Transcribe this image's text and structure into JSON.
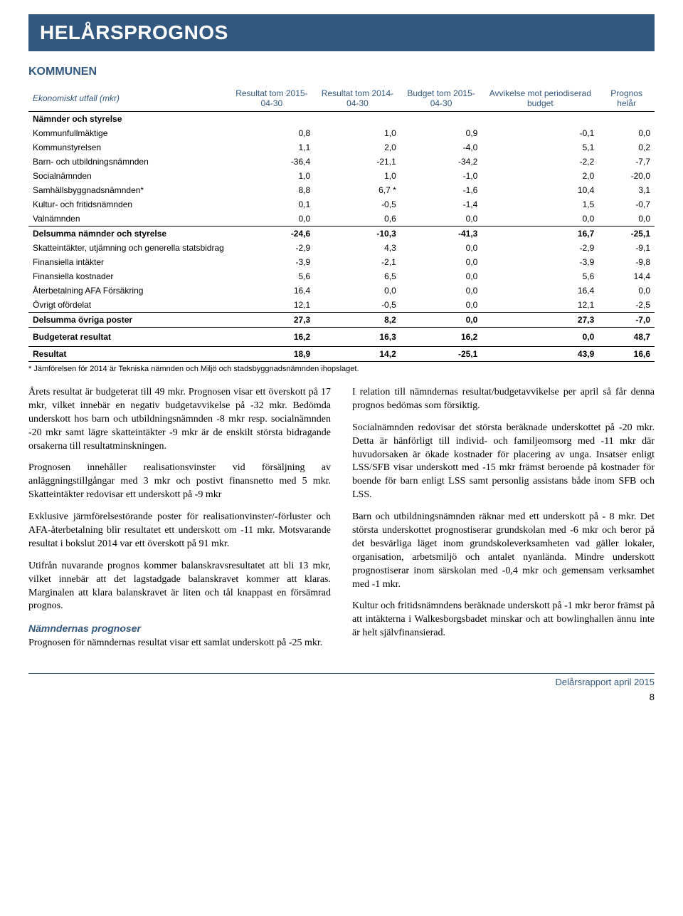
{
  "title": "HELÅRSPROGNOS",
  "subtitle": "KOMMUNEN",
  "table": {
    "header_left": "Ekonomiskt utfall (mkr)",
    "headers": [
      "Resultat tom 2015-04-30",
      "Resultat tom 2014-04-30",
      "Budget tom 2015-04-30",
      "Avvikelse mot periodiserad budget",
      "Prognos helår"
    ],
    "section1_title": "Nämnder och styrelse",
    "rows1": [
      {
        "label": "Kommunfullmäktige",
        "v": [
          "0,8",
          "1,0",
          "0,9",
          "-0,1",
          "0,0"
        ]
      },
      {
        "label": "Kommunstyrelsen",
        "v": [
          "1,1",
          "2,0",
          "-4,0",
          "5,1",
          "0,2"
        ]
      },
      {
        "label": "Barn- och utbildningsnämnden",
        "v": [
          "-36,4",
          "-21,1",
          "-34,2",
          "-2,2",
          "-7,7"
        ]
      },
      {
        "label": "Socialnämnden",
        "v": [
          "1,0",
          "1,0",
          "-1,0",
          "2,0",
          "-20,0"
        ]
      },
      {
        "label": "Samhällsbyggnadsnämnden*",
        "v": [
          "8,8",
          "6,7 *",
          "-1,6",
          "10,4",
          "3,1"
        ]
      },
      {
        "label": "Kultur- och fritidsnämnden",
        "v": [
          "0,1",
          "-0,5",
          "-1,4",
          "1,5",
          "-0,7"
        ]
      },
      {
        "label": "Valnämnden",
        "v": [
          "0,0",
          "0,6",
          "0,0",
          "0,0",
          "0,0"
        ]
      }
    ],
    "subtotal1": {
      "label": "Delsumma nämnder och styrelse",
      "v": [
        "-24,6",
        "-10,3",
        "-41,3",
        "16,7",
        "-25,1"
      ]
    },
    "rows2": [
      {
        "label": "Skatteintäkter, utjämning och generella statsbidrag",
        "v": [
          "-2,9",
          "4,3",
          "0,0",
          "-2,9",
          "-9,1"
        ]
      },
      {
        "label": "Finansiella intäkter",
        "v": [
          "-3,9",
          "-2,1",
          "0,0",
          "-3,9",
          "-9,8"
        ]
      },
      {
        "label": "Finansiella kostnader",
        "v": [
          "5,6",
          "6,5",
          "0,0",
          "5,6",
          "14,4"
        ]
      },
      {
        "label": "Återbetalning AFA Försäkring",
        "v": [
          "16,4",
          "0,0",
          "0,0",
          "16,4",
          "0,0"
        ]
      },
      {
        "label": "Övrigt ofördelat",
        "v": [
          "12,1",
          "-0,5",
          "0,0",
          "12,1",
          "-2,5"
        ]
      }
    ],
    "subtotal2": {
      "label": "Delsumma övriga poster",
      "v": [
        "27,3",
        "8,2",
        "0,0",
        "27,3",
        "-7,0"
      ]
    },
    "budget": {
      "label": "Budgeterat resultat",
      "v": [
        "16,2",
        "16,3",
        "16,2",
        "0,0",
        "48,7"
      ]
    },
    "result": {
      "label": "Resultat",
      "v": [
        "18,9",
        "14,2",
        "-25,1",
        "43,9",
        "16,6"
      ]
    },
    "footnote": "* Jämförelsen för 2014 är Tekniska nämnden och Miljö och stadsbyggnadsnämnden ihopslaget."
  },
  "left_col": {
    "p1": "Årets resultat är budgeterat till 49 mkr. Prognosen visar ett överskott på 17 mkr, vilket innebär en negativ budgetavvi­kelse på -32 mkr. Bedömda underskott hos barn och utbildningsnämnden -8 mkr resp. socialnämnden -20 mkr samt lägre skatteintäkter -9 mkr är de enskilt största bidragande orsakerna till resultatminskningen.",
    "p2": "Prognosen innehåller realisationsvinster vid försäljning av anläggningstillgångar med 3 mkr och postivt finansnetto med 5 mkr. Skatteintäkter redovisar ett underskott på -9 mkr",
    "p3": "Exklusive järmförelsestörande poster för realisationvinster/-förluster och AFA-återbetalning blir resultatet ett underskott om -11 mkr. Motsvarande resultat i bokslut 2014 var ett överskott på 91 mkr.",
    "p4": "Utifrån nuvarande prognos kommer balanskravsresultatet att bli 13 mkr, vilket innebär att det lagstadgade balanskravet kommer att klaras. Marginalen att klara balanskravet är liten och tål knappast en försämrad prognos.",
    "subheading": "Nämndernas prognoser",
    "p5": "Prognosen för nämndernas resultat visar ett samlat under­skott på -25 mkr."
  },
  "right_col": {
    "p1": "I relation till nämndernas resultat/budgetavvikelse per april så får denna prognos bedömas som försiktig.",
    "p2": "Socialnämnden redovisar det största beräknade underskottet på -20 mkr. Detta är hänförligt till individ- och familje­omsorg med -11 mkr där huvudorsaken är ökade kostnader för placering av unga. Insatser enligt LSS/SFB visar under­skott med -15 mkr främst beroende på kostnader för boende för barn enligt LSS samt personlig assistans både inom SFB och LSS.",
    "p3": "Barn och utbildningsnämnden räknar med ett underskott på - 8 mkr. Det största underskottet prognostiserar grundskolan med -6 mkr och beror på det besvärliga läget inom grund­skoleverksamheten vad gäller lokaler, organisation, arbets­miljö och antalet nyanlända. Mindre underskott prognostise­rar inom särskolan med -0,4 mkr och gemensam verksamhet med -1 mkr.",
    "p4": "Kultur och fritidsnämndens beräknade underskott på -1 mkr beror främst på att intäkterna i Walkesborgsbadet minskar och att bowlinghallen ännu inte är helt självfinansierad."
  },
  "footer": "Delårsrapport april 2015",
  "pagenum": "8"
}
